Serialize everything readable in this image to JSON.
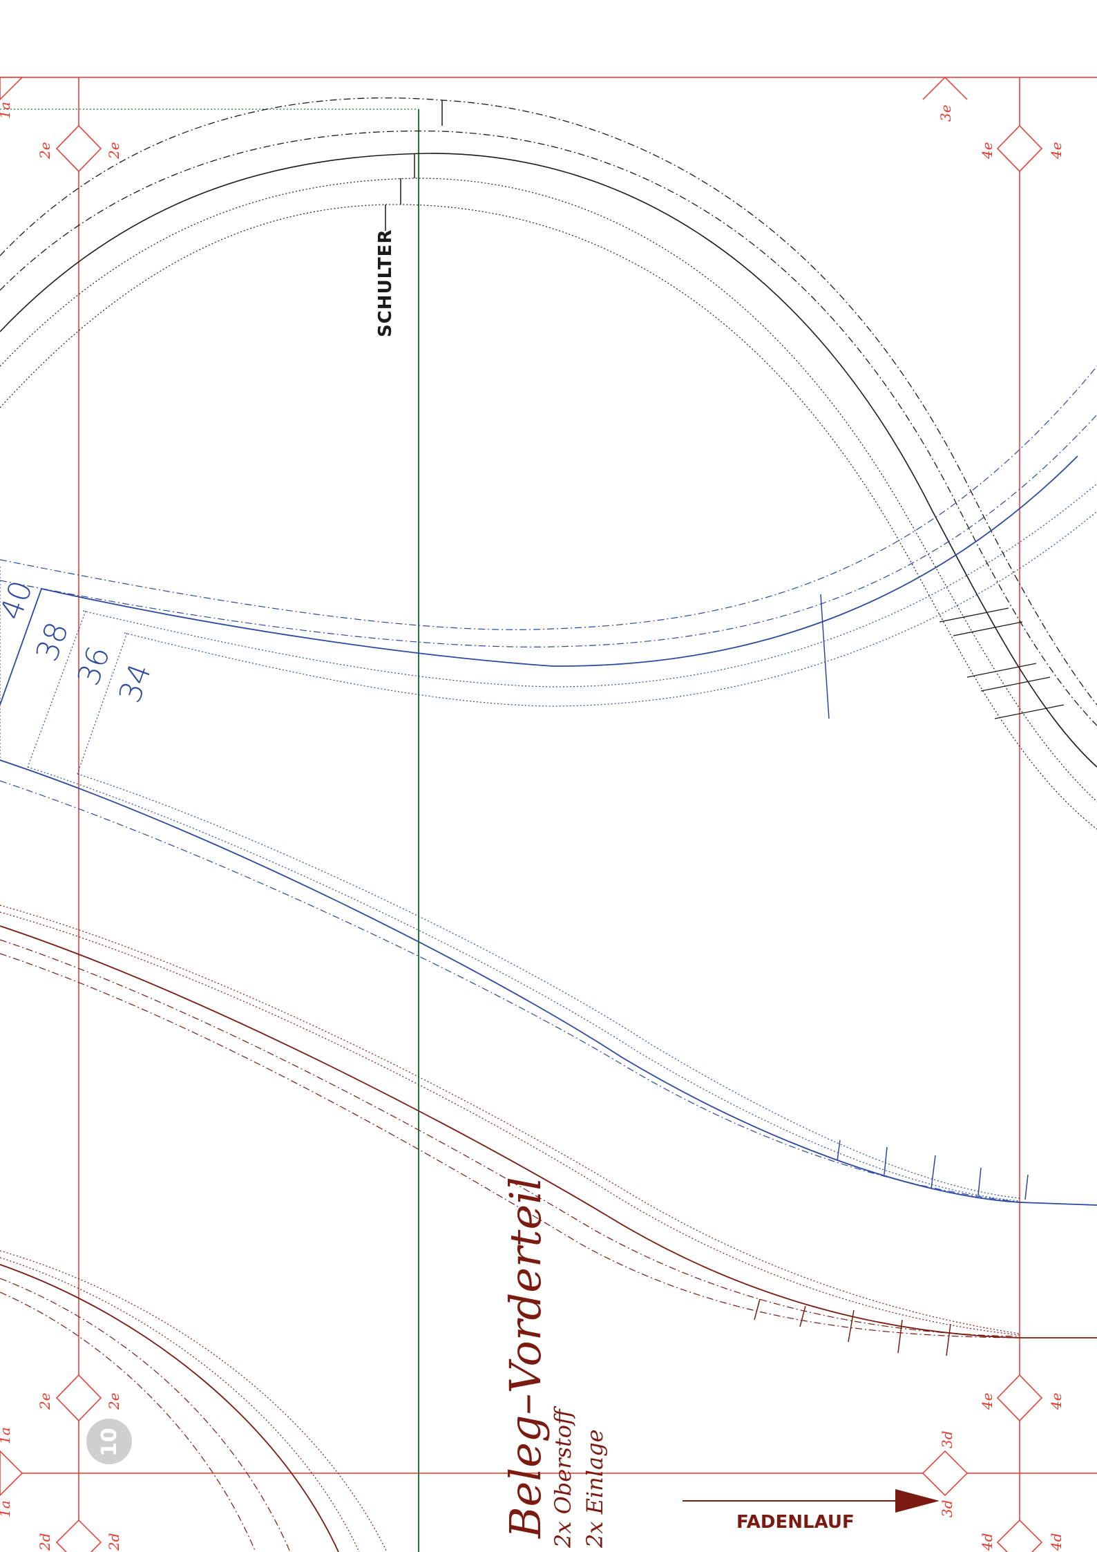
{
  "colors": {
    "grid": "#e8372c",
    "green": "#1f7a3a",
    "blue": "#2a48a0",
    "maroon": "#7a1a10",
    "black": "#1a1a1a",
    "badge": "#cfcfcf"
  },
  "markers": {
    "m1a": "1a",
    "m1a_b": "1a",
    "m1a_c": "1a",
    "m2e_tl": "2e",
    "m2e_tr": "2e",
    "m2e_bl": "2e",
    "m2e_br": "2e",
    "m3e": "3e",
    "m4e_tl": "4e",
    "m4e_tr": "4e",
    "m4e_bl": "4e",
    "m4e_br": "4e",
    "m3d_a": "3d",
    "m3d_b": "3d",
    "m2d_a": "2d",
    "m2d_b": "2d",
    "m4d_a": "4d",
    "m4d_b": "4d"
  },
  "sizes": [
    "40",
    "38",
    "36",
    "34"
  ],
  "labels": {
    "shoulder": "SCHULTER",
    "grainline": "FADENLAUF",
    "piece_title": "Beleg–Vorderteil",
    "cut_outer": "2x Oberstoff",
    "cut_interfacing": "2x Einlage",
    "page_number": "10"
  }
}
